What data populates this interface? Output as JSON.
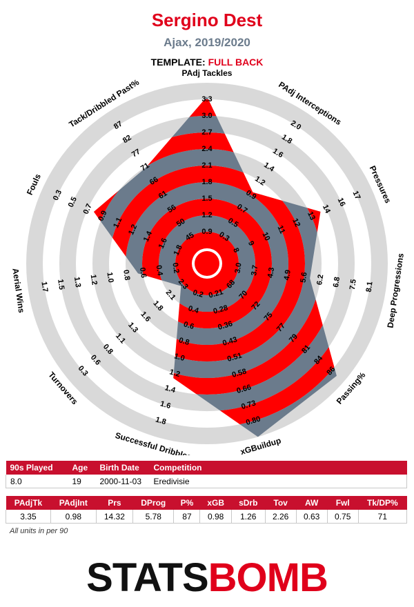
{
  "header": {
    "player": "Sergino Dest",
    "team_season": "Ajax, 2019/2020",
    "template_label": "TEMPLATE:",
    "template_value": "FULL BACK"
  },
  "colors": {
    "red": "#ff0000",
    "slate": "#6b7b8c",
    "ring": "#d9d9d9"
  },
  "chart_data": {
    "type": "radar",
    "rings": 10,
    "metrics": [
      {
        "name": "PAdj Tackles",
        "value": 3.35,
        "ticks": [
          "0.9",
          "1.2",
          "1.5",
          "1.8",
          "2.1",
          "2.4",
          "2.7",
          "3.0",
          "3.3"
        ]
      },
      {
        "name": "PAdj Interceptions",
        "value": 0.98,
        "ticks": [
          "0.3",
          "0.5",
          "0.7",
          "0.9",
          "1.2",
          "1.4",
          "1.6",
          "1.8",
          "2.0"
        ]
      },
      {
        "name": "Pressures",
        "value": 14.32,
        "ticks": [
          "8",
          "9",
          "10",
          "11",
          "12",
          "13",
          "14",
          "16",
          "17"
        ]
      },
      {
        "name": "Deep Progressions",
        "value": 5.78,
        "ticks": [
          "3.0",
          "3.7",
          "4.3",
          "4.9",
          "5.6",
          "6.2",
          "6.8",
          "7.5",
          "8.1"
        ]
      },
      {
        "name": "Passing%",
        "value": 87,
        "ticks": [
          "68",
          "70",
          "72",
          "75",
          "77",
          "79",
          "81",
          "84",
          "86"
        ]
      },
      {
        "name": "xGBuildup",
        "value": 0.98,
        "ticks": [
          "0.21",
          "0.28",
          "0.36",
          "0.43",
          "0.51",
          "0.58",
          "0.66",
          "0.73",
          "0.80"
        ]
      },
      {
        "name": "Successful Dribbles",
        "value": 1.26,
        "ticks": [
          "0.2",
          "0.4",
          "0.6",
          "0.8",
          "1.0",
          "1.2",
          "1.4",
          "1.6",
          "1.8"
        ]
      },
      {
        "name": "Turnovers",
        "value": 2.26,
        "ticks": [
          "2.3",
          "2.1",
          "1.8",
          "1.6",
          "1.3",
          "1.1",
          "0.8",
          "0.6",
          "0.3"
        ]
      },
      {
        "name": "Aerial Wins",
        "value": 0.63,
        "ticks": [
          "0.2",
          "0.4",
          "0.6",
          "0.8",
          "1.0",
          "1.2",
          "1.3",
          "1.5",
          "1.7"
        ]
      },
      {
        "name": "Fouls",
        "value": 0.75,
        "ticks": [
          "1.8",
          "1.6",
          "1.4",
          "1.2",
          "1.1",
          "0.9",
          "0.7",
          "0.5",
          "0.3"
        ]
      },
      {
        "name": "Tack/Dribbled Past%",
        "value": 71,
        "ticks": [
          "45",
          "50",
          "56",
          "61",
          "66",
          "71",
          "77",
          "82",
          "87"
        ]
      }
    ]
  },
  "info_table": {
    "headers": [
      "90s Played",
      "Age",
      "Birth Date",
      "Competition"
    ],
    "values": [
      "8.0",
      "19",
      "2000-11-03",
      "Eredivisie"
    ]
  },
  "stats_table": {
    "headers": [
      "PAdjTk",
      "PAdjInt",
      "Prs",
      "DProg",
      "P%",
      "xGB",
      "sDrb",
      "Tov",
      "AW",
      "Fwl",
      "Tk/DP%"
    ],
    "values": [
      "3.35",
      "0.98",
      "14.32",
      "5.78",
      "87",
      "0.98",
      "1.26",
      "2.26",
      "0.63",
      "0.75",
      "71"
    ]
  },
  "footnote": "All units in per 90",
  "logo": {
    "part1": "STATS",
    "part2": "BOMB"
  }
}
